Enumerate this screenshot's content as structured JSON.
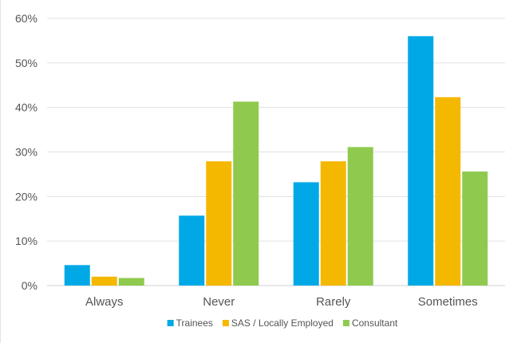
{
  "chart_data": {
    "type": "bar",
    "categories": [
      "Always",
      "Never",
      "Rarely",
      "Sometimes"
    ],
    "series": [
      {
        "name": "Trainees",
        "values": [
          4.6,
          15.7,
          23.2,
          56.0
        ],
        "color": "#00a9e6"
      },
      {
        "name": "SAS / Locally Employed",
        "values": [
          2.0,
          27.9,
          27.9,
          42.3
        ],
        "color": "#f5b800"
      },
      {
        "name": "Consultant",
        "values": [
          1.7,
          41.3,
          31.1,
          25.6
        ],
        "color": "#8fca4f"
      }
    ],
    "y_ticks": [
      "0%",
      "10%",
      "20%",
      "30%",
      "40%",
      "50%",
      "60%"
    ],
    "ylim": [
      0,
      60
    ],
    "grid": true,
    "legend_position": "bottom"
  }
}
